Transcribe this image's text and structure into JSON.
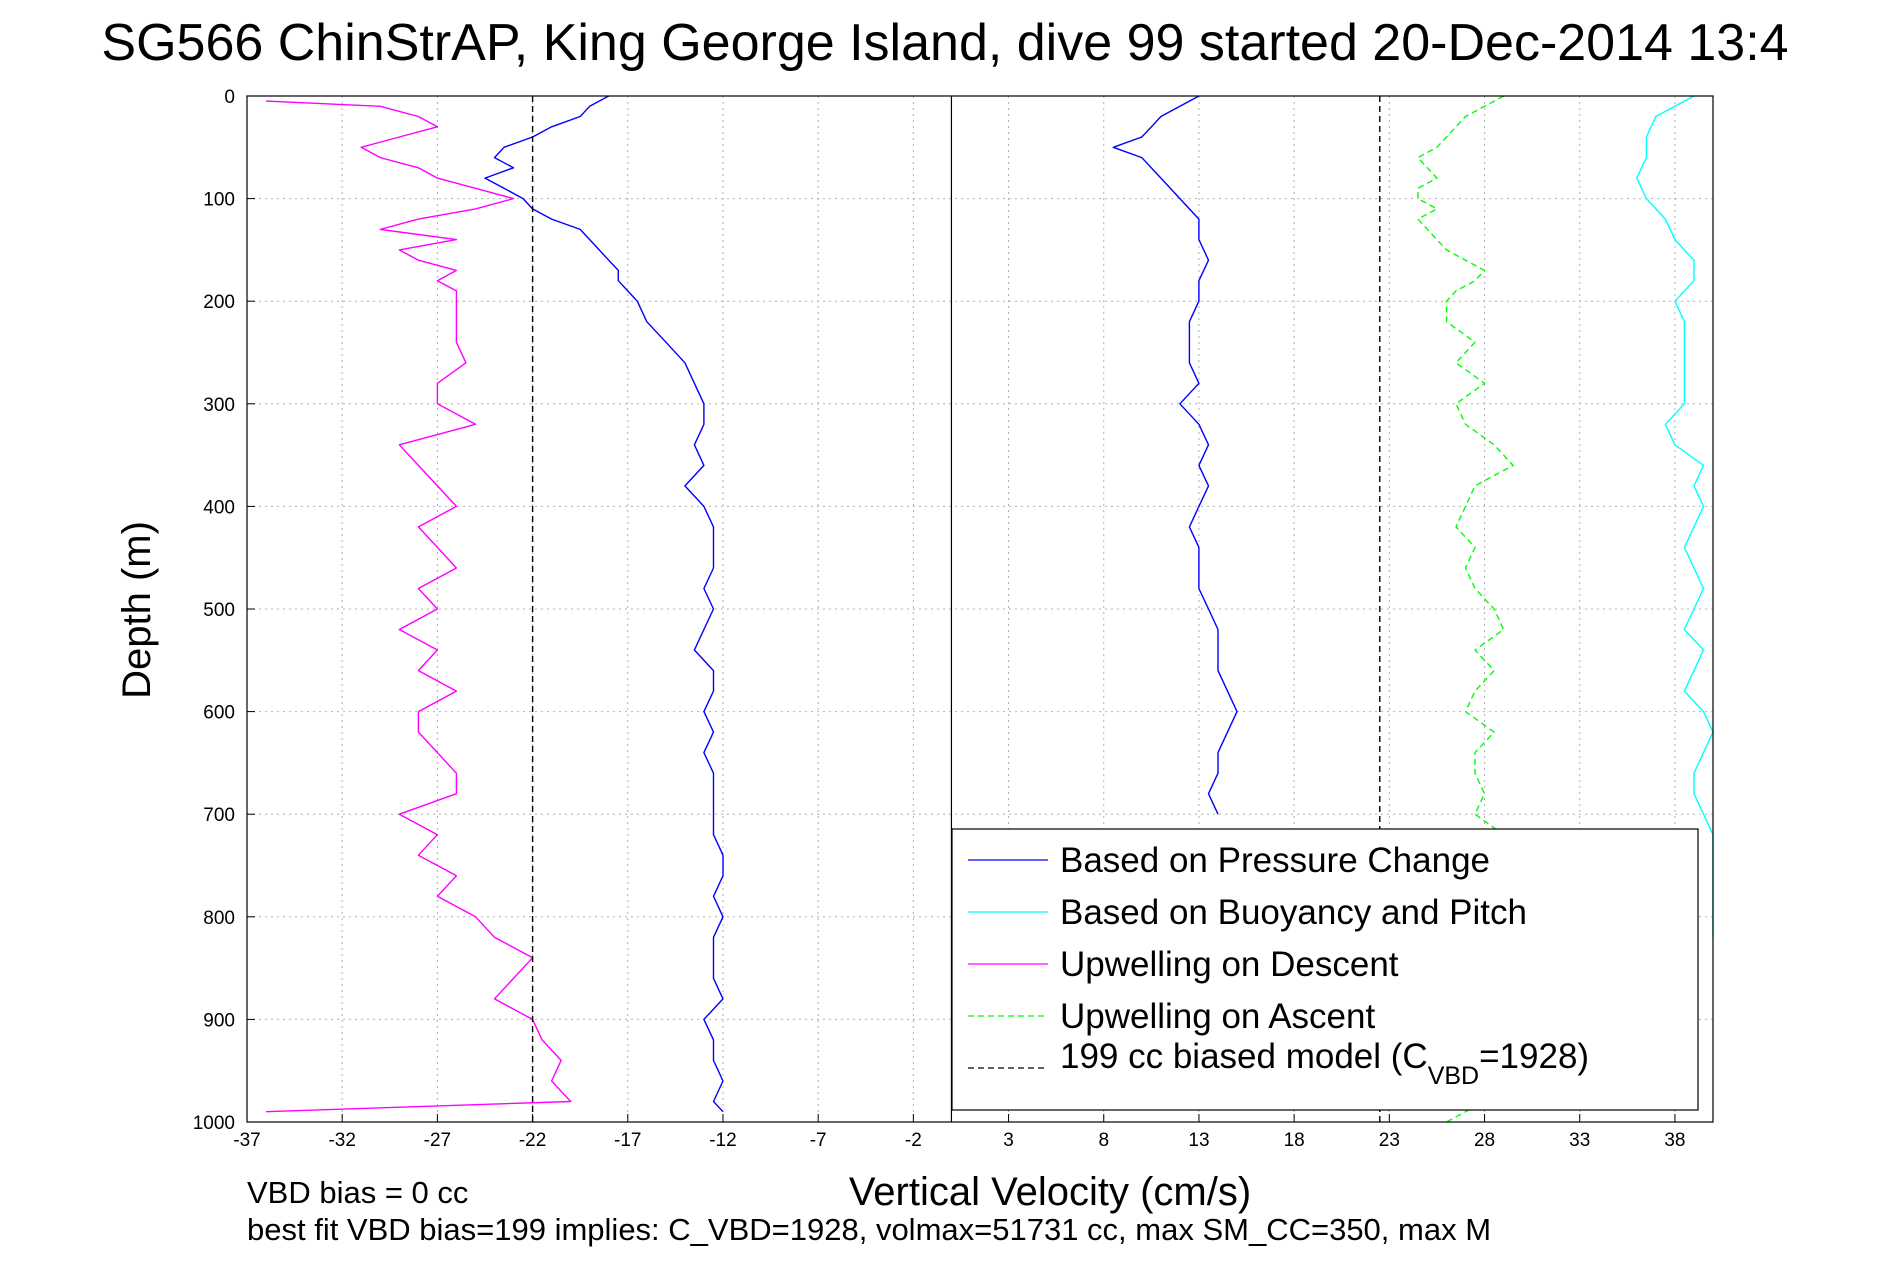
{
  "chart_data": {
    "type": "line",
    "title": "SG566 ChinStrAP, King George Island, dive 99 started 20-Dec-2014 13:4",
    "xlabel": "Vertical Velocity (cm/s)",
    "ylabel": "Depth (m)",
    "xlim": [
      -37,
      40
    ],
    "ylim": [
      1000,
      0
    ],
    "x_ticks": [
      "-37",
      "-32",
      "-27",
      "-22",
      "-17",
      "-12",
      "-7",
      "-2",
      "3",
      "8",
      "13",
      "18",
      "23",
      "28",
      "33",
      "38"
    ],
    "y_ticks": [
      "0",
      "100",
      "200",
      "300",
      "400",
      "500",
      "600",
      "700",
      "800",
      "900",
      "1000"
    ],
    "grid": true,
    "legend_position": "bottom-right",
    "series": [
      {
        "name": "Based on Pressure Change",
        "color": "#0000ff",
        "style": "solid",
        "segments": [
          {
            "depth": [
              0,
              10,
              20,
              30,
              40,
              50,
              60,
              70,
              80,
              90,
              100,
              110,
              120,
              130,
              140,
              150,
              160,
              170,
              180,
              200,
              220,
              240,
              260,
              280,
              300,
              320,
              340,
              360,
              380,
              400,
              420,
              440,
              460,
              480,
              500,
              520,
              540,
              560,
              580,
              600,
              620,
              640,
              660,
              680,
              700,
              720,
              740,
              760,
              780,
              800,
              820,
              840,
              860,
              880,
              900,
              920,
              940,
              960,
              980,
              990
            ],
            "velocity": [
              -18,
              -19,
              -19.5,
              -21,
              -22,
              -23.5,
              -24,
              -23,
              -24.5,
              -23.5,
              -22.5,
              -22,
              -21,
              -19.5,
              -19,
              -18.5,
              -18,
              -17.5,
              -17.5,
              -16.5,
              -16,
              -15,
              -14,
              -13.5,
              -13,
              -13,
              -13.5,
              -13,
              -14,
              -13,
              -12.5,
              -12.5,
              -12.5,
              -13,
              -12.5,
              -13,
              -13.5,
              -12.5,
              -12.5,
              -13,
              -12.5,
              -13,
              -12.5,
              -12.5,
              -12.5,
              -12.5,
              -12,
              -12,
              -12.5,
              -12,
              -12.5,
              -12.5,
              -12.5,
              -12,
              -13,
              -12.5,
              -12.5,
              -12,
              -12.5,
              -12
            ]
          },
          {
            "depth": [
              0,
              10,
              20,
              30,
              40,
              50,
              60,
              80,
              100,
              120,
              140,
              160,
              180,
              200,
              220,
              240,
              260,
              280,
              300,
              320,
              340,
              360,
              380,
              400,
              420,
              440,
              460,
              480,
              500,
              520,
              540,
              560,
              580,
              600,
              620,
              640,
              660,
              680,
              700
            ],
            "velocity": [
              13,
              12,
              11,
              10.5,
              10,
              8.5,
              10,
              11,
              12,
              13,
              13,
              13.5,
              13,
              13,
              12.5,
              12.5,
              12.5,
              13,
              12,
              13,
              13.5,
              13,
              13.5,
              13,
              12.5,
              13,
              13,
              13,
              13.5,
              14,
              14,
              14,
              14.5,
              15,
              14.5,
              14,
              14,
              13.5,
              14
            ]
          }
        ]
      },
      {
        "name": "Based on Buoyancy and Pitch",
        "color": "#00ffff",
        "style": "solid",
        "segments": [
          {
            "depth": [
              0,
              20,
              40,
              60,
              80,
              100,
              120,
              140,
              160,
              180,
              200,
              220,
              240,
              260,
              280,
              300,
              320,
              340,
              360,
              380,
              400,
              420,
              440,
              460,
              480,
              500,
              520,
              540,
              560,
              580,
              600,
              620,
              640,
              660,
              680,
              700,
              720,
              740,
              760,
              780,
              800,
              820
            ],
            "velocity": [
              39,
              37,
              36.5,
              36.5,
              36,
              36.5,
              37.5,
              38,
              39,
              39,
              38,
              38.5,
              38.5,
              38.5,
              38.5,
              38.5,
              37.5,
              38,
              39.5,
              39,
              39.5,
              39,
              38.5,
              39,
              39.5,
              39,
              38.5,
              39.5,
              39,
              38.5,
              39.5,
              40,
              39.5,
              39,
              39,
              39.5,
              40,
              40,
              40,
              40,
              40,
              40
            ]
          }
        ]
      },
      {
        "name": "Upwelling on Descent",
        "color": "#ff00ff",
        "style": "solid",
        "segments": [
          {
            "depth": [
              5,
              10,
              20,
              30,
              40,
              50,
              60,
              70,
              80,
              90,
              100,
              110,
              120,
              130,
              140,
              150,
              160,
              170,
              180,
              190,
              200,
              220,
              240,
              260,
              280,
              300,
              320,
              340,
              360,
              380,
              400,
              420,
              440,
              460,
              480,
              500,
              520,
              540,
              560,
              580,
              600,
              620,
              640,
              660,
              680,
              700,
              720,
              740,
              760,
              780,
              800,
              820,
              840,
              860,
              880,
              900,
              920,
              940,
              960,
              980,
              990
            ],
            "velocity": [
              -36,
              -30,
              -28,
              -27,
              -29,
              -31,
              -30,
              -28,
              -27,
              -25,
              -23,
              -25,
              -28,
              -30,
              -26,
              -29,
              -28,
              -26,
              -27,
              -26,
              -26,
              -26,
              -26,
              -25.5,
              -27,
              -27,
              -25,
              -29,
              -28,
              -27,
              -26,
              -28,
              -27,
              -26,
              -28,
              -27,
              -29,
              -27,
              -28,
              -26,
              -28,
              -28,
              -27,
              -26,
              -26,
              -29,
              -27,
              -28,
              -26,
              -27,
              -25,
              -24,
              -22,
              -23,
              -24,
              -22,
              -21.5,
              -20.5,
              -21,
              -20,
              -36
            ]
          }
        ]
      },
      {
        "name": "Upwelling on Ascent",
        "color": "#00ff00",
        "style": "dashed",
        "segments": [
          {
            "depth": [
              0,
              10,
              20,
              30,
              40,
              50,
              60,
              70,
              80,
              90,
              100,
              110,
              120,
              130,
              140,
              150,
              160,
              170,
              180,
              190,
              200,
              220,
              240,
              260,
              280,
              300,
              320,
              340,
              360,
              380,
              400,
              420,
              440,
              460,
              480,
              500,
              520,
              540,
              560,
              580,
              600,
              620,
              640,
              660,
              680,
              700,
              720,
              740,
              760,
              780,
              800,
              820,
              840,
              860,
              880,
              900,
              920,
              940,
              960,
              980,
              1000
            ],
            "velocity": [
              29,
              28,
              27,
              26.5,
              26,
              25.5,
              24.5,
              25,
              25.5,
              24.5,
              24.5,
              25.5,
              24.5,
              25,
              25.5,
              26,
              27,
              28,
              27.5,
              26.5,
              26,
              26,
              27.5,
              26.5,
              28,
              26.5,
              27,
              28.5,
              29.5,
              27.5,
              27,
              26.5,
              27.5,
              27,
              27.5,
              28.5,
              29,
              27.5,
              28.5,
              27.5,
              27,
              28.5,
              27.5,
              27.5,
              28,
              27.5,
              29,
              28.5,
              27.5,
              27.5,
              27.5,
              28,
              27.5,
              27,
              28,
              27.5,
              27,
              27.5,
              27.5,
              28,
              26
            ]
          }
        ]
      },
      {
        "name": "199 cc biased model (C_VBD=1928)",
        "color": "#000000",
        "style": "dashed",
        "segments": [
          {
            "depth": [
              0,
              1000
            ],
            "velocity": [
              -22,
              -22
            ]
          },
          {
            "depth": [
              0,
              1000
            ],
            "velocity": [
              22.5,
              22.5
            ]
          }
        ]
      }
    ],
    "reference_lines": [
      {
        "axis": "x",
        "value": 0,
        "color": "#000000",
        "style": "solid"
      }
    ],
    "legend": {
      "entries": [
        {
          "label": "Based on Pressure Change",
          "color": "#0000ff",
          "style": "solid"
        },
        {
          "label": "Based on Buoyancy and Pitch",
          "color": "#00ffff",
          "style": "solid"
        },
        {
          "label": "Upwelling on Descent",
          "color": "#ff00ff",
          "style": "solid"
        },
        {
          "label": "Upwelling on Ascent",
          "color": "#00ff00",
          "style": "dashed"
        },
        {
          "label_main": "199 cc biased model (C",
          "label_sub": "VBD",
          "label_tail": "=1928)",
          "color": "#000000",
          "style": "dashed"
        }
      ]
    }
  },
  "footer": {
    "line1": "VBD bias = 0 cc",
    "line2": "best fit VBD bias=199 implies: C_VBD=1928, volmax=51731 cc, max SM_CC=350, max M"
  }
}
